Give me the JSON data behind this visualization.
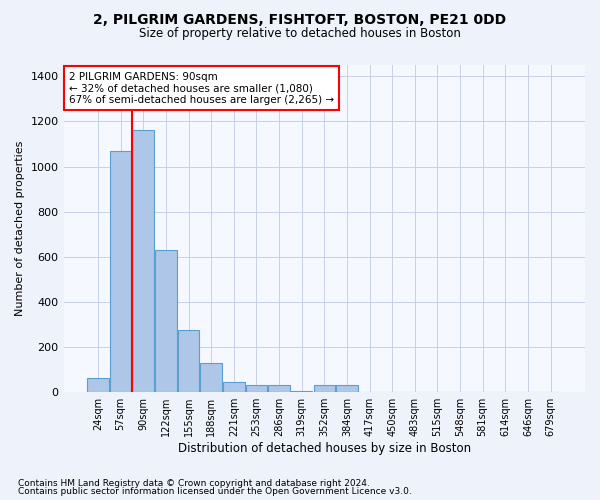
{
  "title1": "2, PILGRIM GARDENS, FISHTOFT, BOSTON, PE21 0DD",
  "title2": "Size of property relative to detached houses in Boston",
  "xlabel": "Distribution of detached houses by size in Boston",
  "ylabel": "Number of detached properties",
  "bin_labels": [
    "24sqm",
    "57sqm",
    "90sqm",
    "122sqm",
    "155sqm",
    "188sqm",
    "221sqm",
    "253sqm",
    "286sqm",
    "319sqm",
    "352sqm",
    "384sqm",
    "417sqm",
    "450sqm",
    "483sqm",
    "515sqm",
    "548sqm",
    "581sqm",
    "614sqm",
    "646sqm",
    "679sqm"
  ],
  "bar_values": [
    65,
    1070,
    1160,
    630,
    275,
    130,
    45,
    30,
    30,
    5,
    30,
    30,
    0,
    0,
    0,
    0,
    0,
    0,
    0,
    0,
    0
  ],
  "bar_color": "#aec6e8",
  "bar_edgecolor": "#5a9fd4",
  "vline_index": 2,
  "vline_color": "red",
  "annotation_title": "2 PILGRIM GARDENS: 90sqm",
  "annotation_line1": "← 32% of detached houses are smaller (1,080)",
  "annotation_line2": "67% of semi-detached houses are larger (2,265) →",
  "annotation_box_color": "white",
  "annotation_box_edgecolor": "red",
  "ylim": [
    0,
    1450
  ],
  "footnote1": "Contains HM Land Registry data © Crown copyright and database right 2024.",
  "footnote2": "Contains public sector information licensed under the Open Government Licence v3.0.",
  "bg_color": "#eef2fb",
  "plot_bg_color": "#f5f8ff",
  "grid_color": "#c8d0e8"
}
